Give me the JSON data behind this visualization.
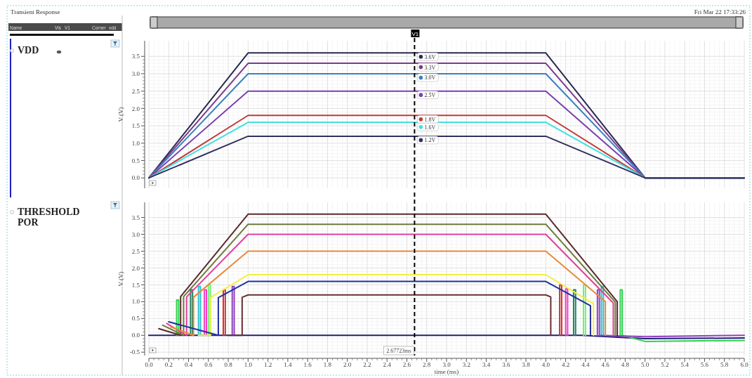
{
  "chart_data": [
    {
      "type": "line",
      "ylabel": "V (V)",
      "xlim": [
        0,
        6
      ],
      "ylim": [
        -0.3,
        3.95
      ],
      "xticks": [
        0,
        0.2,
        0.4,
        0.6,
        0.8,
        1,
        1.2,
        1.4,
        1.6,
        1.8,
        2,
        2.2,
        2.4,
        2.6,
        2.8,
        3,
        3.2,
        3.4,
        3.6,
        3.8,
        4,
        4.2,
        4.4,
        4.6,
        4.8,
        5,
        5.2,
        5.4,
        5.6,
        5.8,
        6
      ],
      "yticks": [
        {
          "value": 0,
          "label": "0.0"
        },
        {
          "value": 0.5,
          "label": "0.5"
        },
        {
          "value": 1,
          "label": "1.0"
        },
        {
          "value": 1.5,
          "label": "1.5"
        },
        {
          "value": 2,
          "label": "2.0"
        },
        {
          "value": 2.5,
          "label": "2.5"
        },
        {
          "value": 3,
          "label": "3.0"
        },
        {
          "value": 3.5,
          "label": "3.5"
        }
      ],
      "tick_labels": "y",
      "grid": true,
      "marker": "none",
      "line_style": "solid",
      "ref_lines": [
        {
          "axis": "x",
          "value": 2.67723,
          "label": "V1",
          "line_style": "dashed",
          "color": "#000000"
        }
      ],
      "annotations": [
        "Transient Response",
        "Fri Mar 22 17:33:26",
        "Name",
        "Vis",
        "V1",
        "Corner",
        "vdd",
        "VDD"
      ],
      "series": [
        {
          "name": "3.6V",
          "color": "#2a2a50",
          "x": [
            0,
            1,
            4,
            5,
            6
          ],
          "values": [
            0,
            3.6,
            3.6,
            0,
            0
          ]
        },
        {
          "name": "3.3V",
          "color": "#7a3a8a",
          "x": [
            0,
            1,
            4,
            5,
            6
          ],
          "values": [
            0,
            3.3,
            3.3,
            0,
            0
          ]
        },
        {
          "name": "3.0V",
          "color": "#3a80c0",
          "x": [
            0,
            1,
            4,
            5,
            6
          ],
          "values": [
            0,
            3.0,
            3.0,
            0,
            0
          ]
        },
        {
          "name": "2.5V",
          "color": "#7a40b0",
          "x": [
            0,
            1,
            4,
            5,
            6
          ],
          "values": [
            0,
            2.5,
            2.5,
            0,
            0
          ]
        },
        {
          "name": "1.8V",
          "color": "#c03a3a",
          "x": [
            0,
            1,
            4,
            5,
            6
          ],
          "values": [
            0,
            1.8,
            1.8,
            0,
            0
          ]
        },
        {
          "name": "1.6V",
          "color": "#40e0e0",
          "x": [
            0,
            1,
            4,
            5,
            6
          ],
          "values": [
            0,
            1.6,
            1.6,
            0,
            0
          ]
        },
        {
          "name": "1.2V",
          "color": "#303060",
          "x": [
            0,
            1,
            4,
            5,
            6
          ],
          "values": [
            0,
            1.2,
            1.2,
            0,
            0
          ]
        }
      ]
    },
    {
      "type": "line",
      "xlabel": "time (ms)",
      "ylabel": "V (V)",
      "xlim": [
        0,
        6
      ],
      "ylim": [
        -0.6,
        3.95
      ],
      "xticks": [
        {
          "value": 0,
          "label": "0.0"
        },
        {
          "value": 0.2,
          "label": "0.2"
        },
        {
          "value": 0.4,
          "label": "0.4"
        },
        {
          "value": 0.6,
          "label": "0.6"
        },
        {
          "value": 0.8,
          "label": "0.8"
        },
        {
          "value": 1,
          "label": "1.0"
        },
        {
          "value": 1.2,
          "label": "1.2"
        },
        {
          "value": 1.4,
          "label": "1.4"
        },
        {
          "value": 1.6,
          "label": "1.6"
        },
        {
          "value": 1.8,
          "label": "1.8"
        },
        {
          "value": 2,
          "label": "2.0"
        },
        {
          "value": 2.2,
          "label": "2.2"
        },
        {
          "value": 2.4,
          "label": "2.4"
        },
        {
          "value": 2.6,
          "label": "2.6"
        },
        {
          "value": 2.8,
          "label": "2.8"
        },
        {
          "value": 3,
          "label": "3.0"
        },
        {
          "value": 3.2,
          "label": "3.2"
        },
        {
          "value": 3.4,
          "label": "3.4"
        },
        {
          "value": 3.6,
          "label": "3.6"
        },
        {
          "value": 3.8,
          "label": "3.8"
        },
        {
          "value": 4,
          "label": "4.0"
        },
        {
          "value": 4.2,
          "label": "4.2"
        },
        {
          "value": 4.4,
          "label": "4.4"
        },
        {
          "value": 4.6,
          "label": "4.6"
        },
        {
          "value": 4.8,
          "label": "4.8"
        },
        {
          "value": 5,
          "label": "5.0"
        },
        {
          "value": 5.2,
          "label": "5.2"
        },
        {
          "value": 5.4,
          "label": "5.4"
        },
        {
          "value": 5.6,
          "label": "5.6"
        },
        {
          "value": 5.8,
          "label": "5.8"
        },
        {
          "value": 6,
          "label": "6.0"
        }
      ],
      "yticks": [
        {
          "value": -0.5,
          "label": "-0.5"
        },
        {
          "value": 0,
          "label": "0.0"
        },
        {
          "value": 0.5,
          "label": "0.5"
        },
        {
          "value": 1,
          "label": "1.0"
        },
        {
          "value": 1.5,
          "label": "1.5"
        },
        {
          "value": 2,
          "label": "2.0"
        },
        {
          "value": 2.5,
          "label": "2.5"
        },
        {
          "value": 3,
          "label": "3.0"
        },
        {
          "value": 3.5,
          "label": "3.5"
        }
      ],
      "grid": true,
      "marker": "none",
      "line_style": "solid",
      "ref_lines": [
        {
          "axis": "x",
          "value": 2.67723,
          "label": "2.67723ms",
          "line_style": "dashed",
          "color": "#000000"
        }
      ],
      "annotations": [
        "THRESHOLD POR"
      ],
      "series": [
        {
          "color": "#202070",
          "x": [
            0,
            0.63,
            4.36,
            5,
            6
          ],
          "values": [
            0,
            0,
            0,
            -0.1,
            -0.08
          ]
        },
        {
          "color": "#30d050",
          "x": [
            0.28,
            0.28,
            0.3,
            0.3,
            2,
            4.75,
            4.75,
            4.77,
            4.77,
            5,
            6
          ],
          "values": [
            0,
            1.05,
            1.05,
            0,
            null,
            0,
            1.35,
            1.35,
            0,
            -0.18,
            -0.15
          ]
        },
        {
          "color": "#30c0d0",
          "x": [
            0.5,
            0.5,
            0.52,
            0.52,
            2,
            4.56,
            4.56,
            4.58,
            4.58
          ],
          "values": [
            0,
            1.45,
            1.45,
            0,
            null,
            0,
            1.45,
            1.45,
            0
          ]
        },
        {
          "color": "#70f070",
          "x": [
            0.6,
            0.6,
            0.62,
            0.62,
            2,
            4.38,
            4.38,
            4.4,
            4.4
          ],
          "values": [
            0,
            1.5,
            1.5,
            0,
            null,
            0,
            1.5,
            1.5,
            0
          ]
        },
        {
          "color": "#9040c0",
          "x": [
            0.84,
            0.84,
            0.86,
            0.86,
            2,
            4.52,
            4.52,
            4.54,
            4.54,
            5,
            6
          ],
          "values": [
            0,
            1.45,
            1.45,
            0,
            null,
            0,
            1.35,
            1.35,
            0,
            -0.04,
            0
          ]
        },
        {
          "color": "#208060",
          "x": [
            0.42,
            0.42,
            0.44,
            0.44,
            2,
            4.28,
            4.28,
            4.3,
            4.3
          ],
          "values": [
            0,
            1.35,
            1.35,
            0,
            null,
            0,
            1.35,
            1.35,
            0
          ]
        },
        {
          "color": "#f040c0",
          "x": [
            0.56,
            0.56,
            0.58,
            0.58,
            2,
            4.2,
            4.2,
            4.22,
            4.22
          ],
          "values": [
            0,
            1.35,
            1.35,
            0,
            null,
            0,
            1.38,
            1.38,
            0
          ]
        },
        {
          "color": "#d03030",
          "x": [
            0.75,
            0.75,
            0.77,
            0.77,
            2,
            4.14,
            4.14,
            4.16,
            4.16
          ],
          "values": [
            0,
            1.35,
            1.35,
            0,
            null,
            0,
            1.5,
            1.5,
            0
          ]
        },
        {
          "color": "#5a2a2a",
          "x": [
            0.1,
            0.32,
            0.32,
            1,
            4,
            4.72,
            4.72
          ],
          "values": [
            0.2,
            0,
            1.15,
            3.6,
            3.6,
            1.0,
            0
          ]
        },
        {
          "color": "#6b7a3a",
          "x": [
            0.14,
            0.35,
            0.35,
            1,
            4,
            4.7,
            4.7
          ],
          "values": [
            0.3,
            0,
            1.15,
            3.3,
            3.3,
            0.99,
            0
          ]
        },
        {
          "color": "#e0409a",
          "x": [
            0.18,
            0.38,
            0.38,
            1,
            4,
            4.68,
            4.68
          ],
          "values": [
            0.35,
            0,
            1.14,
            3.0,
            3.0,
            0.96,
            0
          ]
        },
        {
          "color": "#e88a3a",
          "x": [
            0.22,
            0.45,
            0.45,
            1,
            4,
            4.6,
            4.6
          ],
          "values": [
            0.25,
            0,
            1.13,
            2.5,
            2.5,
            1.0,
            0
          ]
        },
        {
          "color": "#f0f040",
          "x": [
            0.5,
            0.62,
            0.62,
            1,
            4,
            4.48,
            4.48
          ],
          "values": [
            0,
            0,
            1.12,
            1.8,
            1.8,
            0.94,
            0
          ]
        },
        {
          "color": "#2030a0",
          "x": [
            0.2,
            0.7,
            0.7,
            1,
            4,
            4.45,
            4.45
          ],
          "values": [
            0.4,
            0,
            1.12,
            1.6,
            1.6,
            0.88,
            0
          ]
        },
        {
          "color": "#6a3030",
          "x": [
            0.8,
            0.94,
            0.94,
            1,
            4,
            4.05,
            4.05
          ],
          "values": [
            0,
            0,
            1.13,
            1.2,
            1.2,
            1.14,
            0
          ]
        }
      ]
    }
  ]
}
